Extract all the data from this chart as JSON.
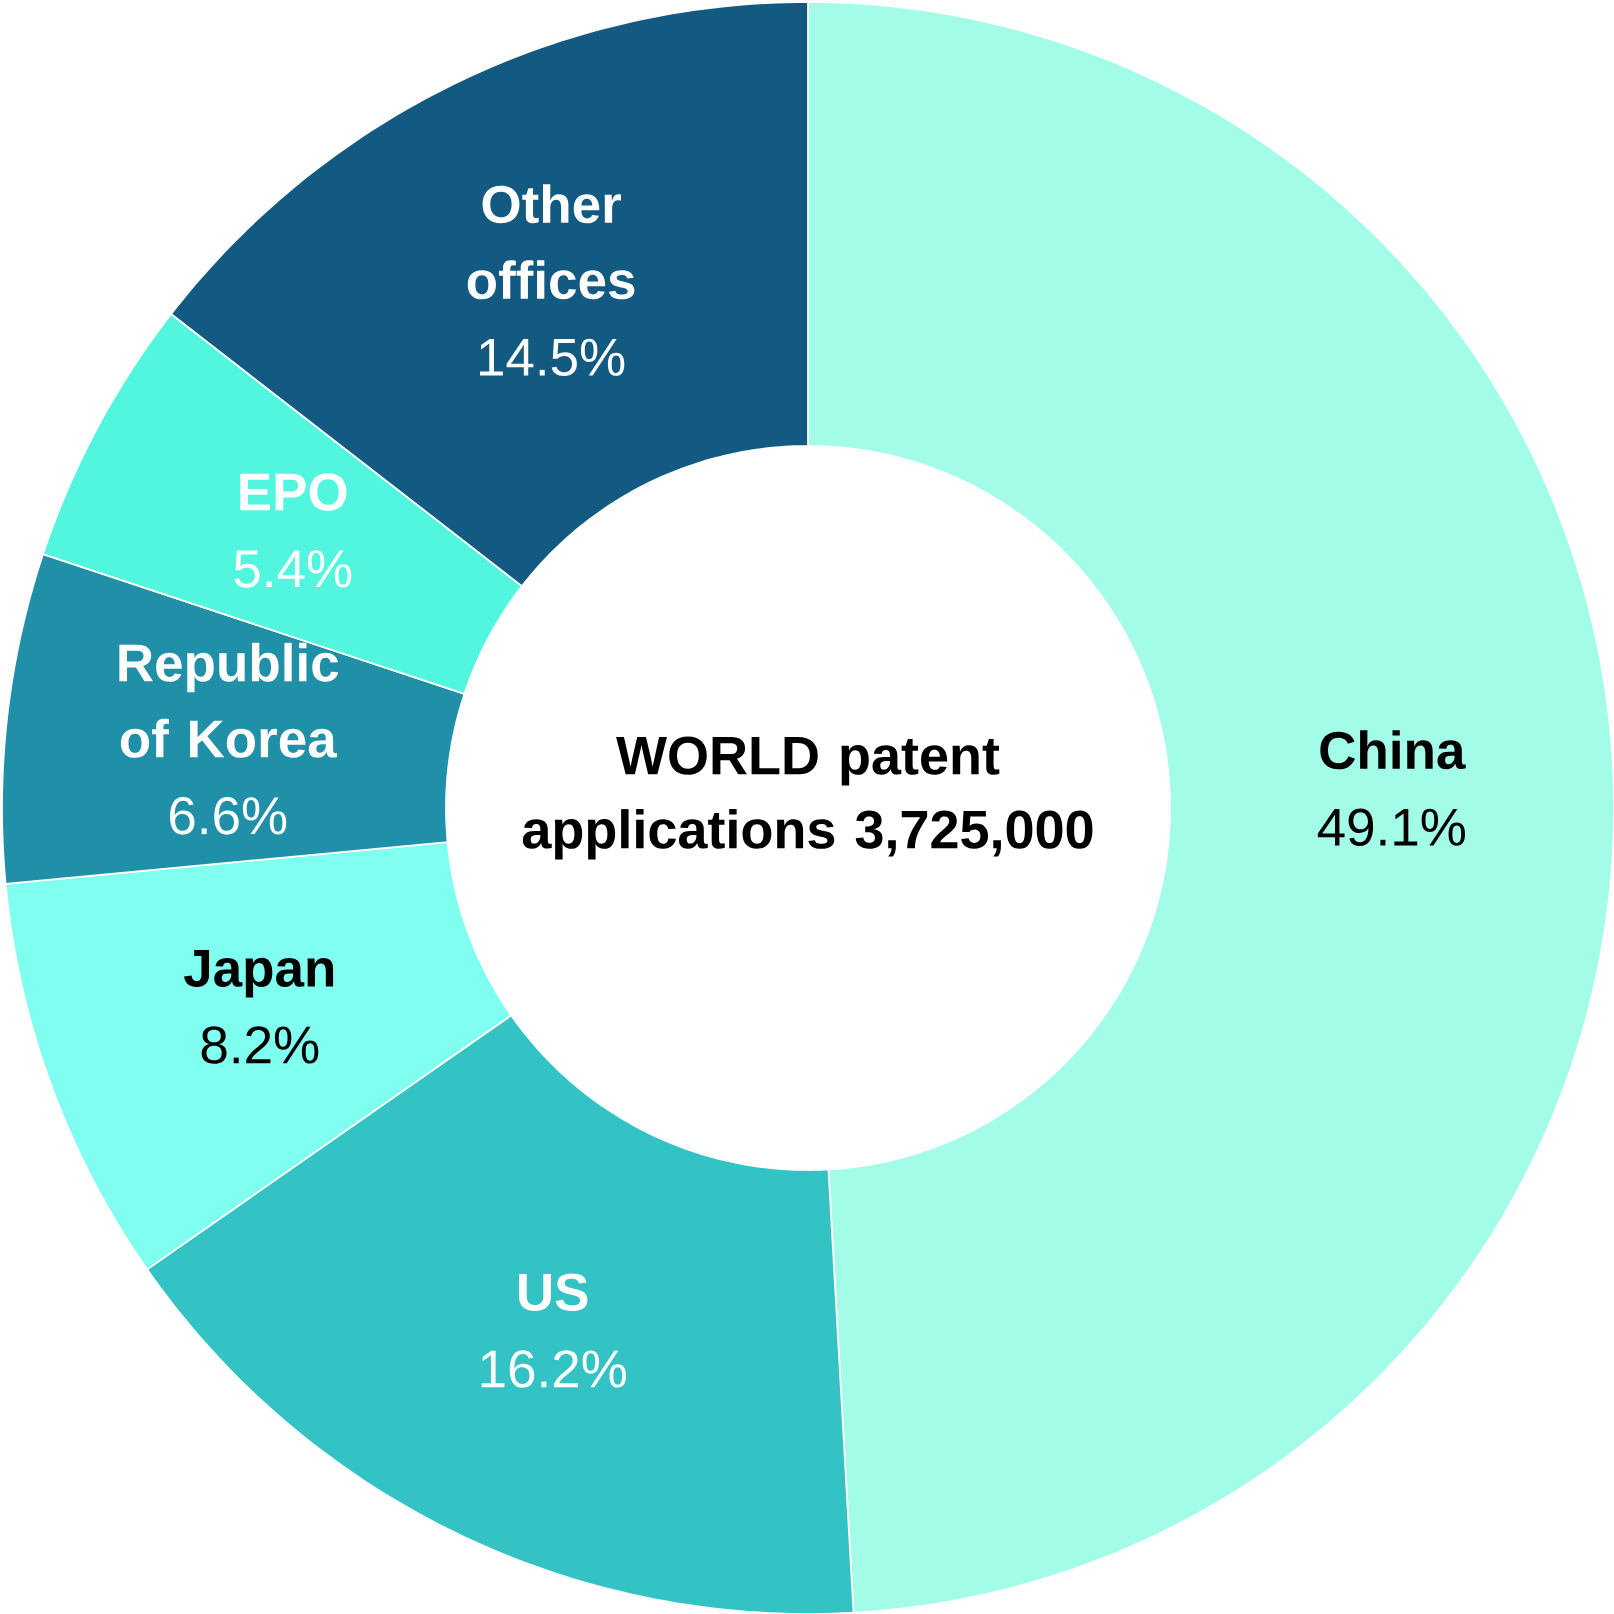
{
  "chart_data": {
    "type": "donut",
    "title": "WORLD patent applications 3,725,000",
    "categories": [
      "China",
      "US",
      "Japan",
      "Republic of Korea",
      "EPO",
      "Other offices"
    ],
    "values": [
      49.1,
      16.2,
      8.2,
      6.6,
      5.4,
      14.5
    ],
    "value_labels": [
      "49.1%",
      "16.2%",
      "8.2%",
      "6.6%",
      "5.4%",
      "14.5%"
    ],
    "colors": [
      "#a3fce8",
      "#34c3c5",
      "#80fff0",
      "#2090a8",
      "#52f6de",
      "#135a82"
    ]
  }
}
